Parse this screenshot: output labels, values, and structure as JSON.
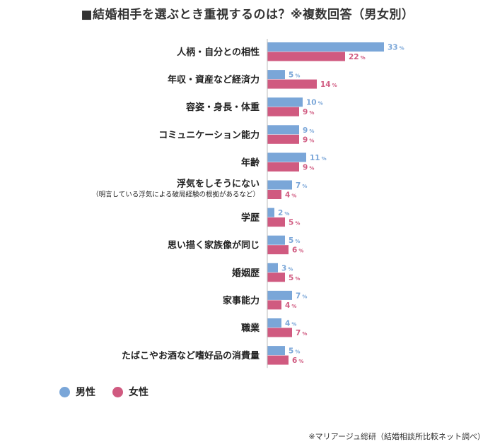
{
  "chart_data": {
    "type": "bar",
    "orientation": "horizontal",
    "title": "■結婚相手を選ぶとき重視するのは？※複数回答（男女別）",
    "categories": [
      "人柄・自分との相性",
      "年収・資産など経済力",
      "容姿・身長・体重",
      "コミュニケーション能力",
      "年齢",
      "浮気をしそうにない",
      "学歴",
      "思い描く家族像が同じ",
      "婚姻歴",
      "家事能力",
      "職業",
      "たばこやお酒など嗜好品の消費量"
    ],
    "category_notes": [
      "",
      "",
      "",
      "",
      "",
      "（明言している浮気による破局経験の根拠があるなど）",
      "",
      "",
      "",
      "",
      "",
      ""
    ],
    "series": [
      {
        "name": "男性",
        "color": "#7aa6d8",
        "values": [
          33,
          5,
          10,
          9,
          11,
          7,
          2,
          5,
          3,
          7,
          4,
          5
        ]
      },
      {
        "name": "女性",
        "color": "#d05a80",
        "values": [
          22,
          14,
          9,
          9,
          9,
          4,
          5,
          6,
          5,
          4,
          7,
          6
        ]
      }
    ],
    "unit": "%",
    "xlim": [
      0,
      40
    ],
    "grid": false,
    "legend_position": "bottom-left"
  },
  "footer": {
    "source": "※マリアージュ総研（結婚相談所比較ネット調べ）"
  }
}
